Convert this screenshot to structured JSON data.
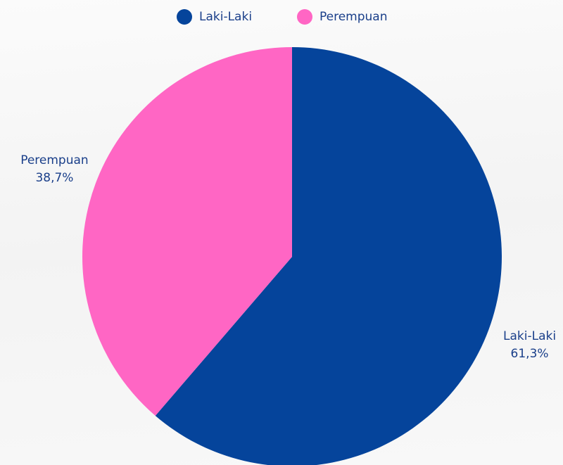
{
  "chart_data": {
    "type": "pie",
    "categories": [
      "Laki-Laki",
      "Perempuan"
    ],
    "values": [
      61.3,
      38.7
    ],
    "value_labels": [
      "61,3%",
      "38,7%"
    ],
    "colors": [
      "#05449b",
      "#ff66c4"
    ],
    "legend": "top"
  }
}
